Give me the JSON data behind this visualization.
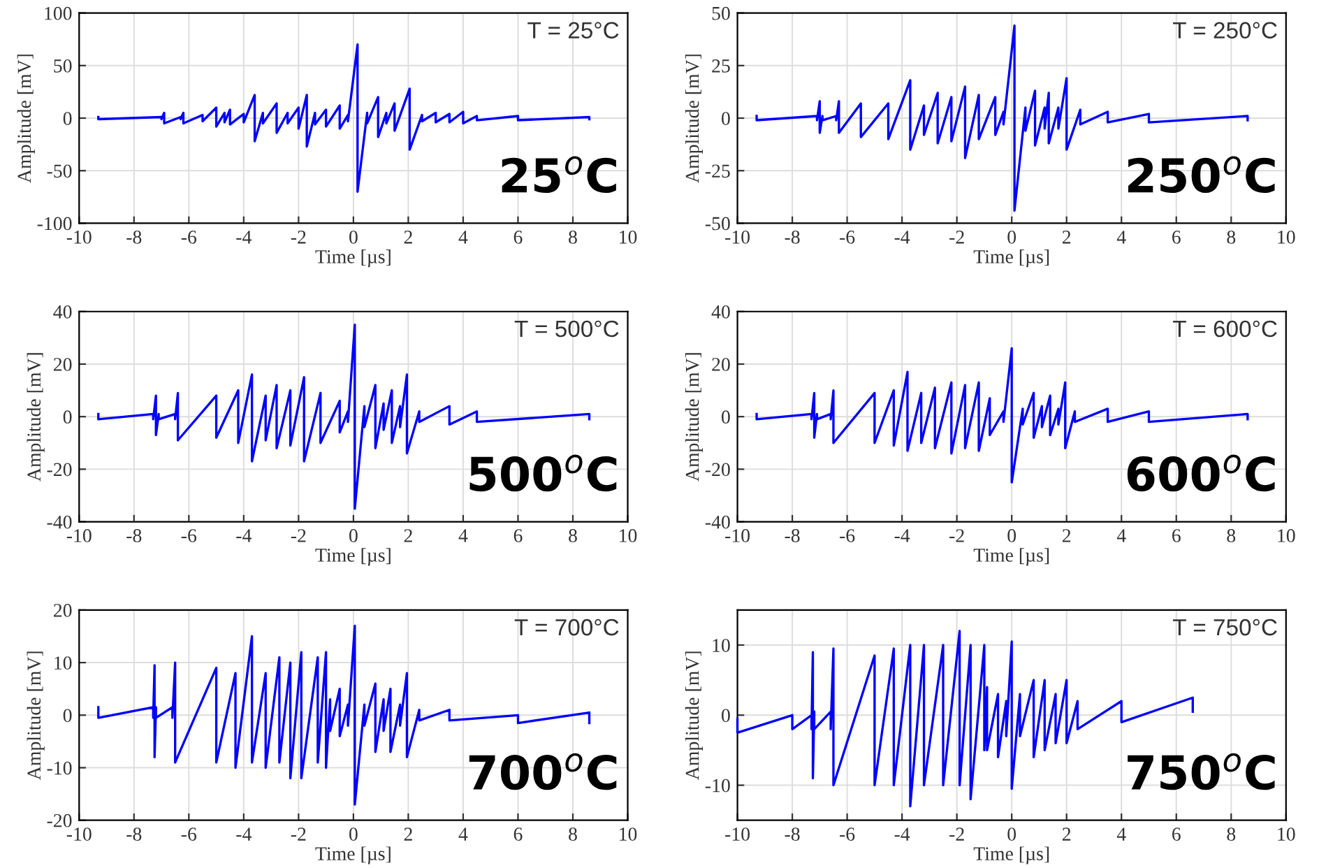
{
  "chart_data": [
    {
      "type": "line",
      "xlabel": "Time [µs]",
      "ylabel": "Amplitude [mV]",
      "annotations": [
        "T = 25°C",
        "25$^{o}$C"
      ],
      "xlim": [
        -10,
        10
      ],
      "xticks": [
        -10,
        -8,
        -6,
        -4,
        -2,
        0,
        2,
        4,
        6,
        8,
        10
      ],
      "ylim": [
        -100,
        100
      ],
      "yticks": [
        -100,
        -50,
        0,
        50,
        100
      ],
      "grid": true,
      "series": [
        {
          "color": "#0000ff",
          "x": [
            -9.3,
            -9.3,
            -7.0,
            -7.0,
            -6.9,
            -6.9,
            -6.3,
            -6.3,
            -6.2,
            -6.2,
            -5.5,
            -5.5,
            -5.0,
            -5.0,
            -4.7,
            -4.7,
            -4.5,
            -4.5,
            -4.0,
            -4.0,
            -3.6,
            -3.6,
            -3.3,
            -3.3,
            -2.8,
            -2.8,
            -2.4,
            -2.4,
            -2.0,
            -2.0,
            -1.7,
            -1.7,
            -1.4,
            -1.4,
            -1.0,
            -1.0,
            -0.5,
            -0.5,
            -0.2,
            -0.2,
            0.15,
            0.15,
            0.5,
            0.5,
            0.9,
            0.9,
            1.2,
            1.2,
            1.5,
            1.5,
            2.05,
            2.05,
            2.5,
            2.5,
            3.0,
            3.0,
            3.5,
            3.5,
            4.0,
            4.0,
            4.5,
            4.5,
            6.0,
            6.0,
            8.6,
            8.6
          ],
          "values": [
            1,
            -1,
            1,
            -1,
            5,
            -5,
            1,
            -1,
            5,
            -5,
            3,
            -3,
            10,
            -8,
            5,
            -4,
            8,
            -6,
            4,
            -4,
            22,
            -22,
            5,
            -5,
            14,
            -14,
            5,
            -5,
            10,
            -10,
            22,
            -27,
            5,
            -6,
            8,
            -8,
            12,
            -10,
            3,
            -3,
            70,
            -70,
            5,
            -5,
            20,
            -18,
            5,
            -5,
            14,
            -12,
            28,
            -30,
            3,
            -3,
            5,
            -4,
            4,
            -4,
            6,
            -5,
            2,
            -2,
            2,
            -2,
            1,
            -1
          ]
        }
      ]
    },
    {
      "type": "line",
      "xlabel": "Time [µs]",
      "ylabel": "Amplitude [mV]",
      "annotations": [
        "T = 250°C",
        "250$^{o}$C"
      ],
      "xlim": [
        -10,
        10
      ],
      "xticks": [
        -10,
        -8,
        -6,
        -4,
        -2,
        0,
        2,
        4,
        6,
        8,
        10
      ],
      "ylim": [
        -50,
        50
      ],
      "yticks": [
        -50,
        -25,
        0,
        25,
        50
      ],
      "grid": true,
      "series": [
        {
          "color": "#0000ff",
          "x": [
            -9.3,
            -9.3,
            -7.1,
            -7.1,
            -7.0,
            -7.0,
            -6.9,
            -6.9,
            -6.4,
            -6.4,
            -6.3,
            -6.3,
            -5.5,
            -5.5,
            -4.5,
            -4.5,
            -3.7,
            -3.7,
            -3.2,
            -3.2,
            -2.7,
            -2.7,
            -2.2,
            -2.2,
            -1.7,
            -1.7,
            -1.2,
            -1.2,
            -0.6,
            -0.6,
            -0.3,
            -0.3,
            0.1,
            0.1,
            0.5,
            0.5,
            0.85,
            0.85,
            1.2,
            1.2,
            1.35,
            1.35,
            1.7,
            1.7,
            2.0,
            2.0,
            2.5,
            2.5,
            3.5,
            3.5,
            5,
            5,
            8.6,
            8.6
          ],
          "values": [
            1,
            -1,
            1,
            -1,
            8,
            -7,
            1,
            -1,
            1,
            -1,
            8,
            -7,
            7,
            -9,
            7,
            -10,
            18,
            -15,
            6,
            -8,
            12,
            -12,
            10,
            -11,
            15,
            -19,
            11,
            -10,
            10,
            -8,
            3,
            -3,
            44,
            -44,
            5,
            -6,
            13,
            -13,
            5,
            -5,
            12,
            -12,
            5,
            -5,
            19,
            -15,
            4,
            -3,
            3,
            -2,
            2,
            -2,
            1,
            -1
          ]
        }
      ]
    },
    {
      "type": "line",
      "xlabel": "Time [µs]",
      "ylabel": "Amplitude [mV]",
      "annotations": [
        "T = 500°C",
        "500$^{o}$C"
      ],
      "xlim": [
        -10,
        10
      ],
      "xticks": [
        -10,
        -8,
        -6,
        -4,
        -2,
        0,
        2,
        4,
        6,
        8,
        10
      ],
      "ylim": [
        -40,
        40
      ],
      "yticks": [
        -40,
        -20,
        0,
        20,
        40
      ],
      "grid": true,
      "series": [
        {
          "color": "#0000ff",
          "x": [
            -9.3,
            -9.3,
            -7.3,
            -7.3,
            -7.2,
            -7.2,
            -7.1,
            -7.1,
            -6.5,
            -6.5,
            -6.4,
            -6.4,
            -5.0,
            -5.0,
            -4.2,
            -4.2,
            -3.7,
            -3.7,
            -3.2,
            -3.2,
            -2.8,
            -2.8,
            -2.3,
            -2.3,
            -1.8,
            -1.8,
            -1.2,
            -1.2,
            -0.5,
            -0.5,
            -0.2,
            -0.2,
            0.05,
            0.05,
            0.4,
            0.4,
            0.8,
            0.8,
            1.1,
            1.1,
            1.4,
            1.4,
            1.7,
            1.7,
            1.95,
            1.95,
            2.4,
            2.4,
            3.5,
            3.5,
            4.5,
            4.5,
            8.6,
            8.6
          ],
          "values": [
            1,
            -1,
            1,
            -1,
            8,
            -7,
            1,
            -1,
            1,
            -1,
            9,
            -9,
            8,
            -8,
            10,
            -10,
            16,
            -17,
            8,
            -9,
            12,
            -12,
            10,
            -11,
            15,
            -17,
            9,
            -10,
            6,
            -6,
            2,
            -2,
            35,
            -35,
            4,
            -4,
            12,
            -12,
            5,
            -5,
            10,
            -10,
            4,
            -4,
            16,
            -14,
            2,
            -2,
            4,
            -3,
            2,
            -2,
            1,
            -1
          ]
        }
      ]
    },
    {
      "type": "line",
      "xlabel": "Time [µs]",
      "ylabel": "Amplitude [mV]",
      "annotations": [
        "T = 600°C",
        "600$^{o}$C"
      ],
      "xlim": [
        -10,
        10
      ],
      "xticks": [
        -10,
        -8,
        -6,
        -4,
        -2,
        0,
        2,
        4,
        6,
        8,
        10
      ],
      "ylim": [
        -40,
        40
      ],
      "yticks": [
        -40,
        -20,
        0,
        20,
        40
      ],
      "grid": true,
      "series": [
        {
          "color": "#0000ff",
          "x": [
            -9.3,
            -9.3,
            -7.3,
            -7.3,
            -7.2,
            -7.2,
            -7.1,
            -7.1,
            -6.6,
            -6.6,
            -6.5,
            -6.5,
            -5.0,
            -5.0,
            -4.3,
            -4.3,
            -3.8,
            -3.8,
            -3.3,
            -3.3,
            -2.8,
            -2.8,
            -2.2,
            -2.2,
            -1.7,
            -1.7,
            -1.2,
            -1.2,
            -0.8,
            -0.8,
            -0.3,
            -0.3,
            0.0,
            0.0,
            0.4,
            0.4,
            0.8,
            0.8,
            1.1,
            1.1,
            1.4,
            1.4,
            1.7,
            1.7,
            1.95,
            1.95,
            2.3,
            2.3,
            3.5,
            3.5,
            5,
            5,
            8.6,
            8.6
          ],
          "values": [
            1,
            -1,
            1,
            -1,
            9,
            -8,
            1,
            -1,
            1,
            -1,
            10,
            -10,
            9,
            -10,
            10,
            -11,
            17,
            -13,
            9,
            -10,
            11,
            -12,
            13,
            -14,
            12,
            -12,
            13,
            -13,
            7,
            -7,
            2,
            -2,
            26,
            -25,
            3,
            -3,
            9,
            -8,
            4,
            -4,
            8,
            -7,
            3,
            -3,
            13,
            -12,
            2,
            -2,
            3,
            -2,
            2,
            -2,
            1,
            -1
          ]
        }
      ]
    },
    {
      "type": "line",
      "xlabel": "Time [µs]",
      "ylabel": "Amplitude [mV]",
      "annotations": [
        "T = 700°C",
        "700$^{o}$C"
      ],
      "xlim": [
        -10,
        10
      ],
      "xticks": [
        -10,
        -8,
        -6,
        -4,
        -2,
        0,
        2,
        4,
        6,
        8,
        10
      ],
      "ylim": [
        -20,
        20
      ],
      "yticks": [
        -20,
        -10,
        0,
        10,
        20
      ],
      "grid": true,
      "series": [
        {
          "color": "#0000ff",
          "x": [
            -9.3,
            -9.3,
            -7.3,
            -7.3,
            -7.25,
            -7.25,
            -7.2,
            -7.2,
            -6.6,
            -6.6,
            -6.5,
            -6.5,
            -5.0,
            -5.0,
            -4.3,
            -4.3,
            -3.7,
            -3.7,
            -3.2,
            -3.2,
            -2.7,
            -2.7,
            -2.3,
            -2.3,
            -1.9,
            -1.9,
            -1.3,
            -1.3,
            -1.0,
            -1.0,
            -0.85,
            -0.85,
            -0.5,
            -0.5,
            -0.2,
            -0.2,
            0.05,
            0.05,
            0.4,
            0.4,
            0.8,
            0.8,
            1.1,
            1.1,
            1.35,
            1.35,
            1.7,
            1.7,
            1.95,
            1.95,
            2.4,
            2.4,
            3.5,
            3.5,
            6,
            6,
            8.6,
            8.6
          ],
          "values": [
            1.5,
            -0.5,
            1.5,
            -0.5,
            9.5,
            -8,
            1.5,
            -0.5,
            1.5,
            -0.5,
            10,
            -9,
            9,
            -9,
            8,
            -10,
            15,
            -9,
            8,
            -10,
            11,
            -9,
            10,
            -12,
            12,
            -12,
            11,
            -9,
            12,
            -10,
            3,
            -3,
            5,
            -4,
            2,
            -2,
            17,
            -17,
            2,
            -2,
            6,
            -7,
            3,
            -3,
            5,
            -7,
            2,
            -2,
            8,
            -8,
            1,
            -1,
            1,
            -1,
            0,
            -1.5,
            0.5,
            -1.5
          ]
        }
      ]
    },
    {
      "type": "line",
      "xlabel": "Time [µs]",
      "ylabel": "Amplitude [mV]",
      "annotations": [
        "T = 750°C",
        "750$^{o}$C"
      ],
      "xlim": [
        -10,
        10
      ],
      "xticks": [
        -10,
        -8,
        -6,
        -4,
        -2,
        0,
        2,
        4,
        6,
        8,
        10
      ],
      "ylim": [
        -15,
        15
      ],
      "yticks": [
        -10,
        0,
        10
      ],
      "grid": true,
      "series": [
        {
          "color": "#0000ff",
          "x": [
            -10,
            -10,
            -8,
            -8,
            -7.3,
            -7.3,
            -7.25,
            -7.25,
            -7.2,
            -7.2,
            -6.6,
            -6.6,
            -6.5,
            -6.5,
            -5.0,
            -5.0,
            -4.3,
            -4.3,
            -3.7,
            -3.7,
            -3.2,
            -3.2,
            -2.5,
            -2.5,
            -1.9,
            -1.9,
            -1.5,
            -1.5,
            -1.0,
            -1.0,
            -0.9,
            -0.9,
            -0.5,
            -0.5,
            -0.2,
            -0.2,
            0.0,
            0.0,
            0.3,
            0.3,
            0.8,
            0.8,
            1.2,
            1.2,
            1.6,
            1.6,
            2.0,
            2.0,
            2.4,
            2.4,
            4,
            4,
            6.6,
            6.6
          ],
          "values": [
            -0.5,
            -2.5,
            0,
            -2,
            0,
            -2,
            9,
            -9,
            0.5,
            -2,
            0.5,
            -2,
            9.5,
            -10,
            8.5,
            -10,
            9.5,
            -10,
            10,
            -13,
            10,
            -10,
            10,
            -10,
            12,
            -10,
            10,
            -12,
            10,
            -5,
            4,
            -5,
            3,
            -6,
            2,
            -3,
            10.5,
            -10.5,
            3,
            -3,
            5,
            -6,
            5,
            -5,
            3,
            -4,
            5,
            -4,
            2,
            -2,
            2,
            -1,
            2.5,
            0.5
          ]
        }
      ]
    }
  ]
}
